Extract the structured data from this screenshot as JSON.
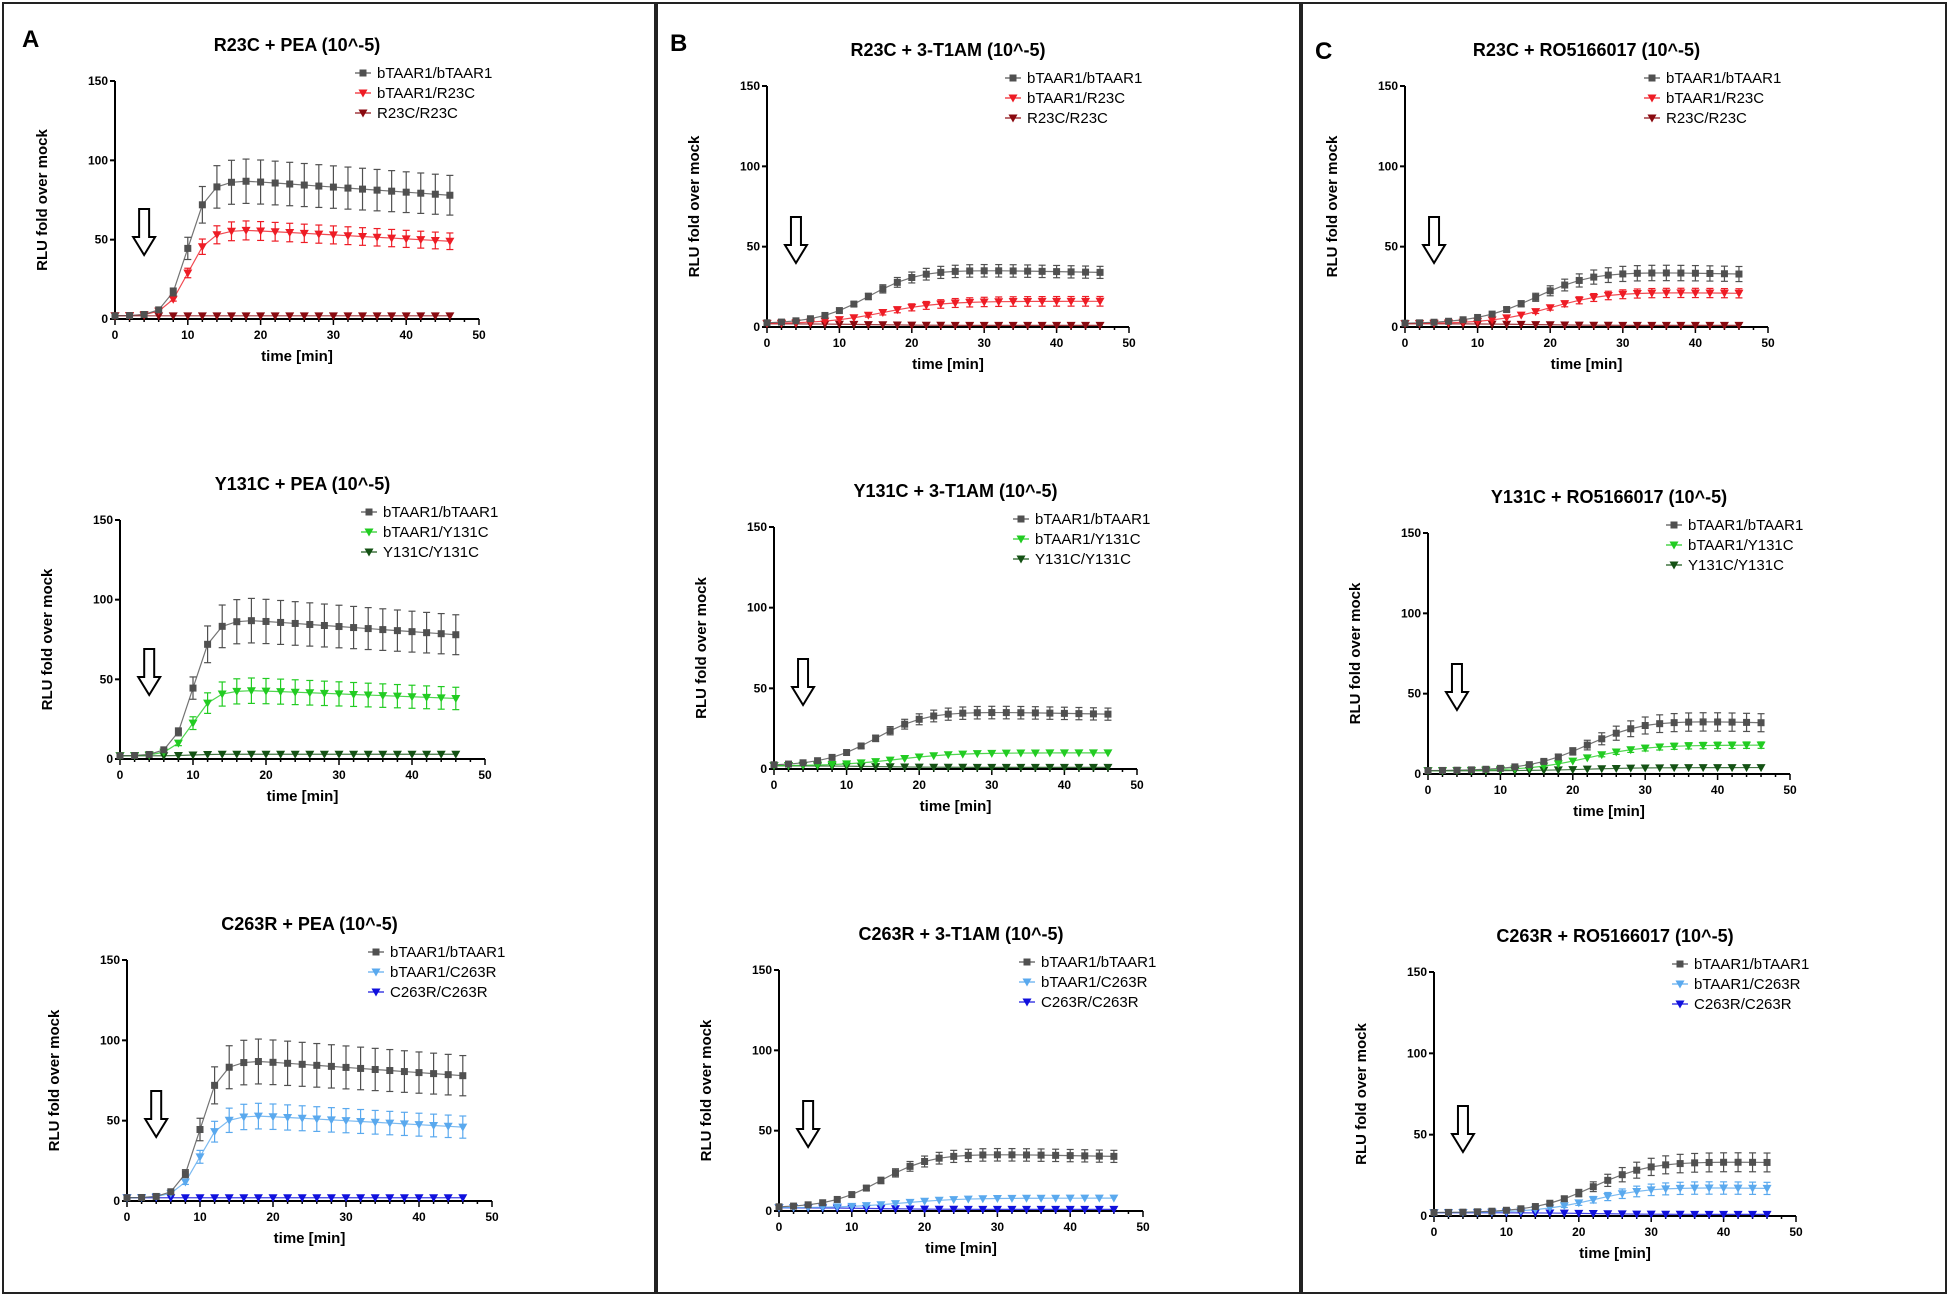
{
  "panels": [
    {
      "letter": "A"
    },
    {
      "letter": "B"
    },
    {
      "letter": "C"
    }
  ],
  "colors": {
    "wt": "#505050",
    "R23C_het": "#ee1c25",
    "R23C_hom": "#8a0a10",
    "Y131C_het": "#22cc22",
    "Y131C_hom": "#145214",
    "C263R_het": "#5aa9ee",
    "C263R_hom": "#1010dd"
  },
  "chart_data": [
    {
      "type": "line",
      "panel": "A",
      "title": "R23C + PEA (10^-5)",
      "xlabel": "time [min]",
      "ylabel": "RLU fold over mock",
      "xlim": [
        0,
        50
      ],
      "ylim": [
        0,
        150
      ],
      "xticks": [
        "0",
        "10",
        "20",
        "30",
        "40",
        "50"
      ],
      "yticks": [
        "0",
        "50",
        "100",
        "150"
      ],
      "arrow_x": 4,
      "series": [
        {
          "name": "bTAAR1/bTAAR1",
          "marker": "square",
          "color": "wt",
          "plateau": 87,
          "end": 78,
          "mid": 10,
          "k": 1.3,
          "err": 14
        },
        {
          "name": "bTAAR1/R23C",
          "marker": "tri-down",
          "color": "R23C_het",
          "plateau": 56,
          "end": 49,
          "mid": 10,
          "k": 1.4,
          "err": 6
        },
        {
          "name": "R23C/R23C",
          "marker": "tri-down",
          "color": "R23C_hom",
          "plateau": 2,
          "end": 2,
          "mid": 10,
          "k": 1.4,
          "err": 0
        }
      ]
    },
    {
      "type": "line",
      "panel": "A",
      "title": "Y131C + PEA (10^-5)",
      "xlabel": "time [min]",
      "ylabel": "RLU fold over mock",
      "xlim": [
        0,
        50
      ],
      "ylim": [
        0,
        150
      ],
      "xticks": [
        "0",
        "10",
        "20",
        "30",
        "40",
        "50"
      ],
      "yticks": [
        "0",
        "50",
        "100",
        "150"
      ],
      "arrow_x": 4,
      "series": [
        {
          "name": "bTAAR1/bTAAR1",
          "marker": "square",
          "color": "wt",
          "plateau": 87,
          "end": 78,
          "mid": 10,
          "k": 1.3,
          "err": 14
        },
        {
          "name": "bTAAR1/Y131C",
          "marker": "tri-down",
          "color": "Y131C_het",
          "plateau": 43,
          "end": 38,
          "mid": 10,
          "k": 1.4,
          "err": 8
        },
        {
          "name": "Y131C/Y131C",
          "marker": "tri-down",
          "color": "Y131C_hom",
          "plateau": 3,
          "end": 3,
          "mid": 10,
          "k": 1.4,
          "err": 0
        }
      ]
    },
    {
      "type": "line",
      "panel": "A",
      "title": "C263R + PEA (10^-5)",
      "xlabel": "time [min]",
      "ylabel": "RLU fold over mock",
      "xlim": [
        0,
        50
      ],
      "ylim": [
        0,
        150
      ],
      "xticks": [
        "0",
        "10",
        "20",
        "30",
        "40",
        "50"
      ],
      "yticks": [
        "0",
        "50",
        "100",
        "150"
      ],
      "arrow_x": 4,
      "series": [
        {
          "name": "bTAAR1/bTAAR1",
          "marker": "square",
          "color": "wt",
          "plateau": 87,
          "end": 78,
          "mid": 10,
          "k": 1.3,
          "err": 14
        },
        {
          "name": "bTAAR1/C263R",
          "marker": "tri-down",
          "color": "C263R_het",
          "plateau": 53,
          "end": 46,
          "mid": 10,
          "k": 1.4,
          "err": 8
        },
        {
          "name": "C263R/C263R",
          "marker": "tri-down",
          "color": "C263R_hom",
          "plateau": 2,
          "end": 2,
          "mid": 10,
          "k": 1.4,
          "err": 0
        }
      ]
    },
    {
      "type": "line",
      "panel": "B",
      "title": "R23C + 3-T1AM (10^-5)",
      "xlabel": "time [min]",
      "ylabel": "RLU fold over mock",
      "xlim": [
        0,
        50
      ],
      "ylim": [
        0,
        150
      ],
      "xticks": [
        "0",
        "10",
        "20",
        "30",
        "40",
        "50"
      ],
      "yticks": [
        "0",
        "50",
        "100",
        "150"
      ],
      "arrow_x": 4,
      "series": [
        {
          "name": "bTAAR1/bTAAR1",
          "marker": "square",
          "color": "wt",
          "plateau": 36,
          "end": 34,
          "mid": 14,
          "k": 3.5,
          "err": 4
        },
        {
          "name": "bTAAR1/R23C",
          "marker": "tri-down",
          "color": "R23C_het",
          "plateau": 16,
          "end": 16,
          "mid": 16,
          "k": 4,
          "err": 3
        },
        {
          "name": "R23C/R23C",
          "marker": "tri-down",
          "color": "R23C_hom",
          "plateau": 1,
          "end": 1,
          "mid": 14,
          "k": 4,
          "err": 0
        }
      ]
    },
    {
      "type": "line",
      "panel": "B",
      "title": "Y131C + 3-T1AM (10^-5)",
      "xlabel": "time [min]",
      "ylabel": "RLU fold over mock",
      "xlim": [
        0,
        50
      ],
      "ylim": [
        0,
        150
      ],
      "xticks": [
        "0",
        "10",
        "20",
        "30",
        "40",
        "50"
      ],
      "yticks": [
        "0",
        "50",
        "100",
        "150"
      ],
      "arrow_x": 4,
      "series": [
        {
          "name": "bTAAR1/bTAAR1",
          "marker": "square",
          "color": "wt",
          "plateau": 36,
          "end": 34,
          "mid": 14,
          "k": 3.5,
          "err": 4
        },
        {
          "name": "bTAAR1/Y131C",
          "marker": "tri-down",
          "color": "Y131C_het",
          "plateau": 10,
          "end": 10,
          "mid": 17,
          "k": 4,
          "err": 1
        },
        {
          "name": "Y131C/Y131C",
          "marker": "tri-down",
          "color": "Y131C_hom",
          "plateau": 1,
          "end": 1,
          "mid": 14,
          "k": 4,
          "err": 0
        }
      ]
    },
    {
      "type": "line",
      "panel": "B",
      "title": "C263R + 3-T1AM (10^-5)",
      "xlabel": "time [min]",
      "ylabel": "RLU fold over mock",
      "xlim": [
        0,
        50
      ],
      "ylim": [
        0,
        150
      ],
      "xticks": [
        "0",
        "10",
        "20",
        "30",
        "40",
        "50"
      ],
      "yticks": [
        "0",
        "50",
        "100",
        "150"
      ],
      "arrow_x": 4,
      "series": [
        {
          "name": "bTAAR1/bTAAR1",
          "marker": "square",
          "color": "wt",
          "plateau": 36,
          "end": 34,
          "mid": 14,
          "k": 3.5,
          "err": 4
        },
        {
          "name": "bTAAR1/C263R",
          "marker": "tri-down",
          "color": "C263R_het",
          "plateau": 8,
          "end": 8,
          "mid": 17,
          "k": 4,
          "err": 1
        },
        {
          "name": "C263R/C263R",
          "marker": "tri-down",
          "color": "C263R_hom",
          "plateau": 1,
          "end": 1,
          "mid": 14,
          "k": 4,
          "err": 0
        }
      ]
    },
    {
      "type": "line",
      "panel": "C",
      "title": "R23C + RO5166017 (10^-5)",
      "xlabel": "time [min]",
      "ylabel": "RLU fold over mock",
      "xlim": [
        0,
        50
      ],
      "ylim": [
        0,
        150
      ],
      "xticks": [
        "0",
        "10",
        "20",
        "30",
        "40",
        "50"
      ],
      "yticks": [
        "0",
        "50",
        "100",
        "150"
      ],
      "arrow_x": 4,
      "series": [
        {
          "name": "bTAAR1/bTAAR1",
          "marker": "square",
          "color": "wt",
          "plateau": 35,
          "end": 33,
          "mid": 18,
          "k": 4,
          "err": 5
        },
        {
          "name": "bTAAR1/R23C",
          "marker": "tri-down",
          "color": "R23C_het",
          "plateau": 22,
          "end": 21,
          "mid": 20,
          "k": 4,
          "err": 3
        },
        {
          "name": "R23C/R23C",
          "marker": "tri-down",
          "color": "R23C_hom",
          "plateau": 1,
          "end": 1,
          "mid": 18,
          "k": 4,
          "err": 0
        }
      ]
    },
    {
      "type": "line",
      "panel": "C",
      "title": "Y131C + RO5166017 (10^-5)",
      "xlabel": "time [min]",
      "ylabel": "RLU fold over mock",
      "xlim": [
        0,
        50
      ],
      "ylim": [
        0,
        150
      ],
      "xticks": [
        "0",
        "10",
        "20",
        "30",
        "40",
        "50"
      ],
      "yticks": [
        "0",
        "50",
        "100",
        "150"
      ],
      "arrow_x": 4,
      "series": [
        {
          "name": "bTAAR1/bTAAR1",
          "marker": "square",
          "color": "wt",
          "plateau": 34,
          "end": 32,
          "mid": 22,
          "k": 4,
          "err": 6
        },
        {
          "name": "bTAAR1/Y131C",
          "marker": "tri-down",
          "color": "Y131C_het",
          "plateau": 18,
          "end": 18,
          "mid": 22,
          "k": 4,
          "err": 2
        },
        {
          "name": "Y131C/Y131C",
          "marker": "tri-down",
          "color": "Y131C_hom",
          "plateau": 4,
          "end": 4,
          "mid": 22,
          "k": 4,
          "err": 0
        }
      ]
    },
    {
      "type": "line",
      "panel": "C",
      "title": "C263R + RO5166017 (10^-5)",
      "xlabel": "time [min]",
      "ylabel": "RLU fold over mock",
      "xlim": [
        0,
        50
      ],
      "ylim": [
        0,
        150
      ],
      "xticks": [
        "0",
        "10",
        "20",
        "30",
        "40",
        "50"
      ],
      "yticks": [
        "0",
        "50",
        "100",
        "150"
      ],
      "arrow_x": 4,
      "series": [
        {
          "name": "bTAAR1/bTAAR1",
          "marker": "square",
          "color": "wt",
          "plateau": 34,
          "end": 33,
          "mid": 22,
          "k": 4,
          "err": 6
        },
        {
          "name": "bTAAR1/C263R",
          "marker": "tri-down",
          "color": "C263R_het",
          "plateau": 18,
          "end": 17,
          "mid": 22,
          "k": 4,
          "err": 4
        },
        {
          "name": "C263R/C263R",
          "marker": "tri-down",
          "color": "C263R_hom",
          "plateau": 1,
          "end": 1,
          "mid": 22,
          "k": 4,
          "err": 0
        }
      ]
    }
  ]
}
